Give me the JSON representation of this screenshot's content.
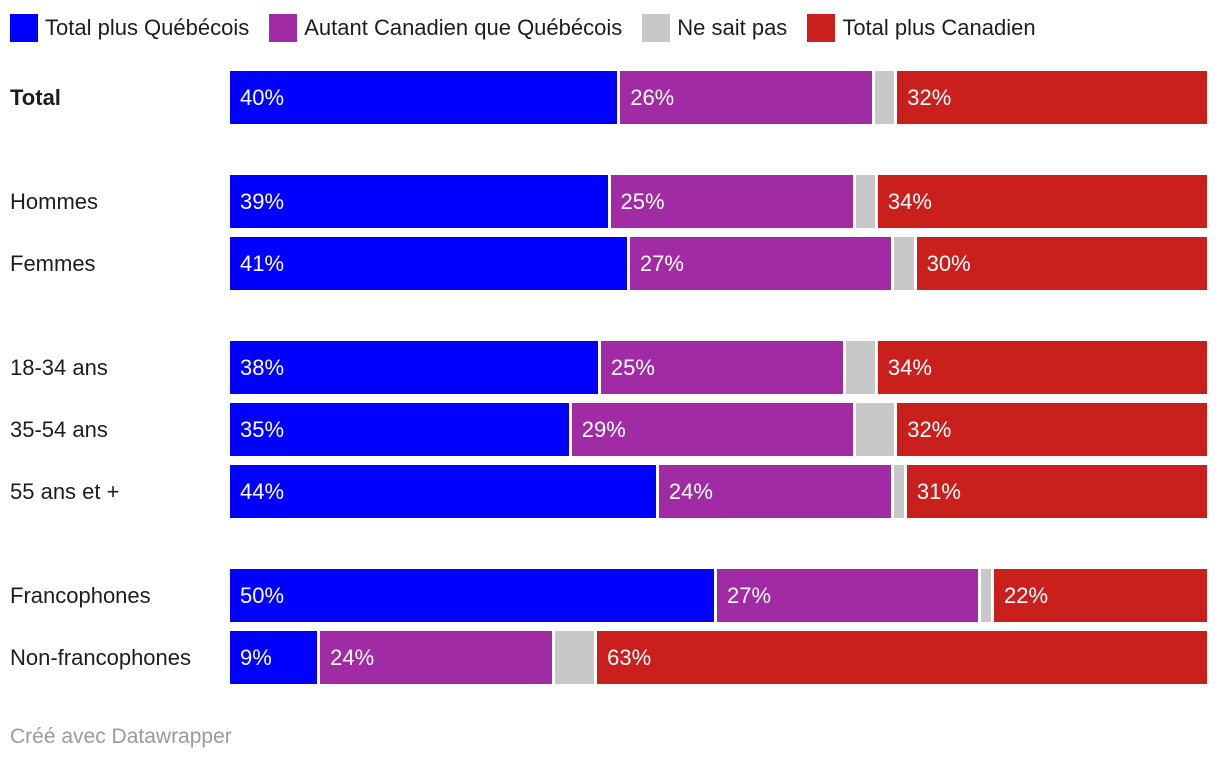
{
  "legend": {
    "items": [
      {
        "key": "total-plus-quebecois",
        "label": "Total plus Québécois",
        "color": "#0000fe"
      },
      {
        "key": "autant-canadien-que-quebecois",
        "label": "Autant Canadien que Québécois",
        "color": "#a12aa5"
      },
      {
        "key": "ne-sait-pas",
        "label": "Ne sait pas",
        "color": "#c8c8c8"
      },
      {
        "key": "total-plus-canadien",
        "label": "Total plus Canadien",
        "color": "#c9201e"
      }
    ]
  },
  "chart_data": {
    "type": "bar",
    "orientation": "horizontal",
    "stacked": true,
    "value_suffix": "%",
    "xlim": [
      0,
      100
    ],
    "grid": false,
    "legend_position": "top",
    "categories": [
      "Total",
      "Hommes",
      "Femmes",
      "18-34 ans",
      "35-54 ans",
      "55 ans et +",
      "Francophones",
      "Non-francophones"
    ],
    "groups": [
      [
        0
      ],
      [
        1,
        2
      ],
      [
        3,
        4,
        5
      ],
      [
        6,
        7
      ]
    ],
    "bold_categories": [
      "Total"
    ],
    "series": [
      {
        "key": "total-plus-quebecois",
        "name": "Total plus Québécois",
        "color": "#0000fe",
        "show_value_labels": true,
        "values": [
          40,
          39,
          41,
          38,
          35,
          44,
          50,
          9
        ]
      },
      {
        "key": "autant-canadien-que-quebecois",
        "name": "Autant Canadien que Québécois",
        "color": "#a12aa5",
        "show_value_labels": true,
        "values": [
          26,
          25,
          27,
          25,
          29,
          24,
          27,
          24
        ]
      },
      {
        "key": "ne-sait-pas",
        "name": "Ne sait pas",
        "color": "#c8c8c8",
        "show_value_labels": false,
        "values": [
          2,
          2,
          2,
          3,
          4,
          1,
          1,
          4
        ]
      },
      {
        "key": "total-plus-canadien",
        "name": "Total plus Canadien",
        "color": "#c9201e",
        "show_value_labels": true,
        "values": [
          32,
          34,
          30,
          34,
          32,
          31,
          22,
          63
        ]
      }
    ]
  },
  "footer": {
    "credit": "Créé avec Datawrapper"
  }
}
